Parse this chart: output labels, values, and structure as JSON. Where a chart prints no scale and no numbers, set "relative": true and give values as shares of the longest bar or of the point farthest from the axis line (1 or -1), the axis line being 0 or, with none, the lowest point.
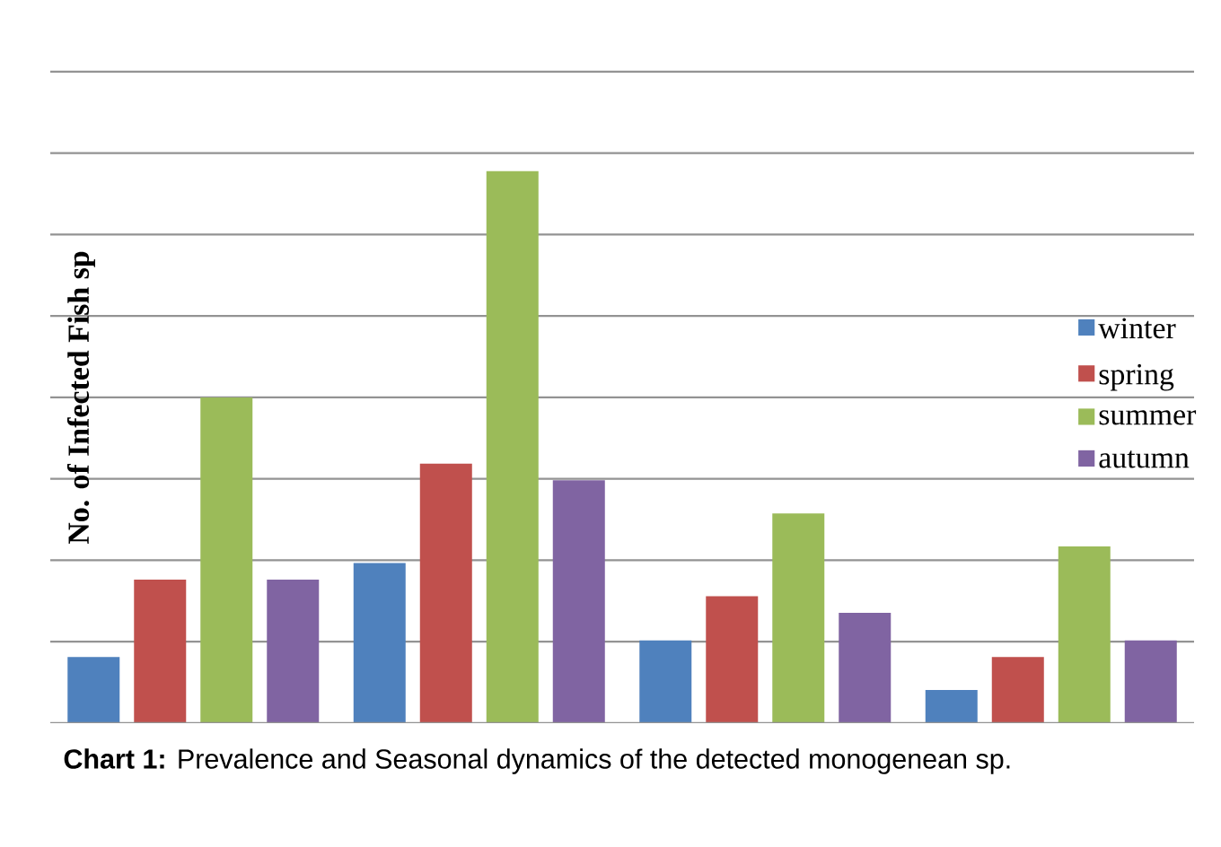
{
  "chart_data": {
    "type": "bar",
    "ylabel": "No. of Infected Fish sp",
    "categories": [
      null,
      null,
      null,
      null
    ],
    "series": [
      {
        "name": "winter",
        "color": "#4f81bd",
        "values": [
          0.12,
          0.29,
          0.15,
          0.06
        ]
      },
      {
        "name": "spring",
        "color": "#c0504d",
        "values": [
          0.26,
          0.47,
          0.23,
          0.12
        ]
      },
      {
        "name": "summer",
        "color": "#9bbb59",
        "values": [
          0.59,
          1,
          0.38,
          0.32
        ]
      },
      {
        "name": "autumn",
        "color": "#8064a2",
        "values": [
          0.26,
          0.44,
          0.2,
          0.15
        ]
      }
    ],
    "relative": true,
    "grid": "y",
    "legend": "right",
    "annotations": [
      "**Chart 1:** Prevalence and Seasonal dynamics of the detected monogenean sp."
    ]
  }
}
